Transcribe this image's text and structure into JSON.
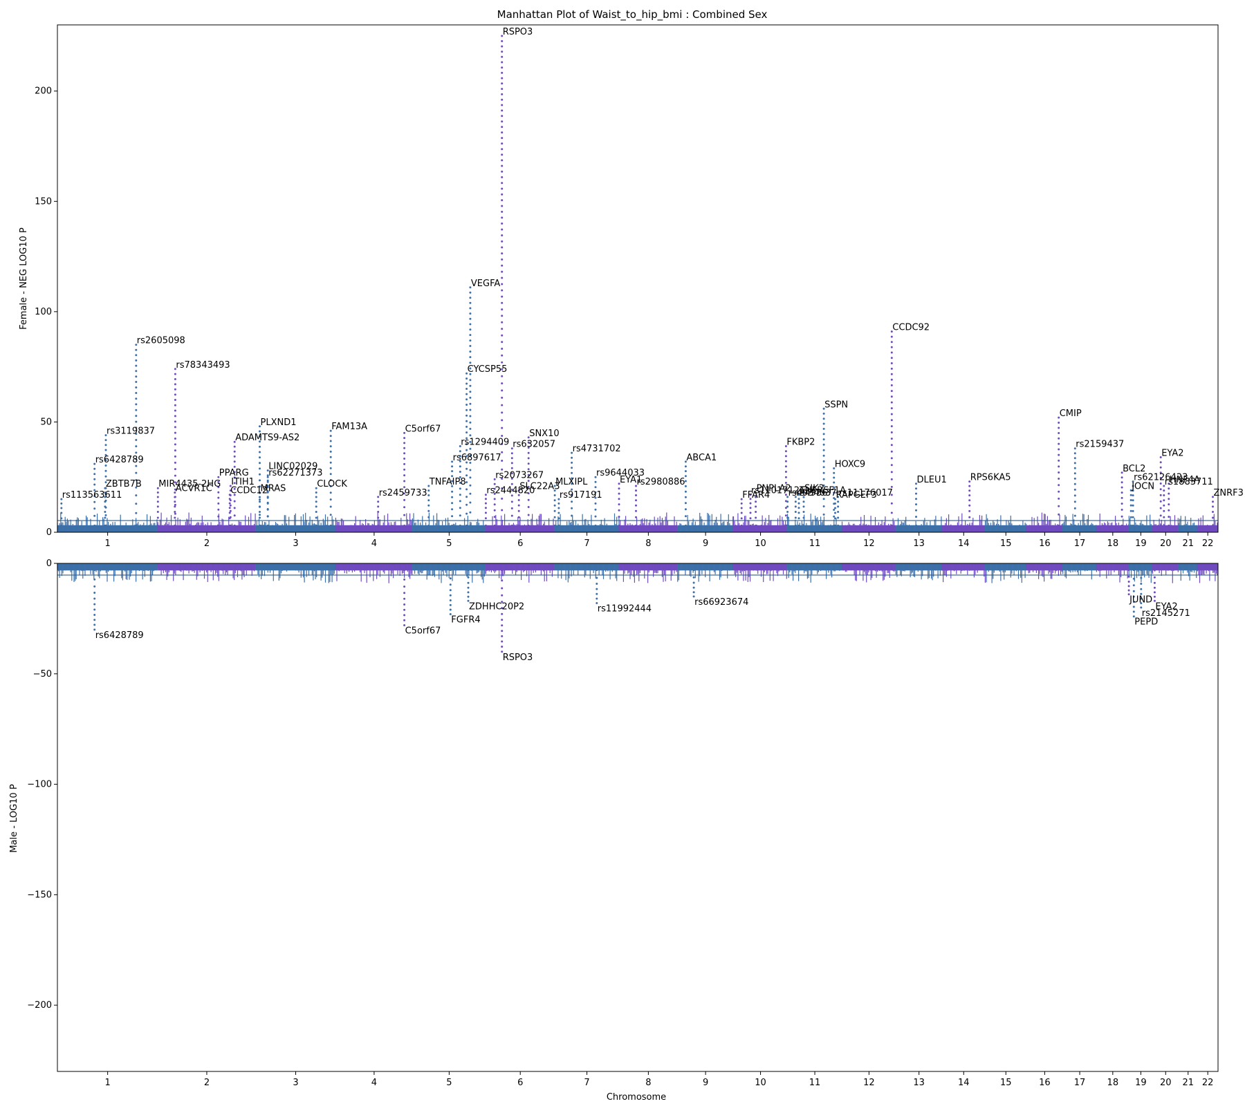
{
  "chart_data": {
    "type": "scatter",
    "title": "Manhattan Plot of Waist_to_hip_bmi : Combined Sex",
    "xlabel": "Chromosome",
    "colors": {
      "odd": "#3d6fa8",
      "even": "#6f4bbf",
      "threshold": "#2e5e8c"
    },
    "chromosomes": [
      "1",
      "2",
      "3",
      "4",
      "5",
      "6",
      "7",
      "8",
      "9",
      "10",
      "11",
      "12",
      "13",
      "14",
      "15",
      "16",
      "17",
      "18",
      "19",
      "20",
      "21",
      "22"
    ],
    "chrom_lengths": [
      248.9,
      242.2,
      198.3,
      190.2,
      181.5,
      170.8,
      159.3,
      145.1,
      138.4,
      133.8,
      135.1,
      133.3,
      114.4,
      107.0,
      102.0,
      90.3,
      83.3,
      80.4,
      58.6,
      64.4,
      46.7,
      50.8
    ],
    "top": {
      "ylabel": "Female - NEG LOG10 P",
      "ylim": [
        0,
        230
      ],
      "yticks": [
        0,
        50,
        100,
        150,
        200
      ],
      "threshold": 5.3,
      "peaks": [
        {
          "chr": 1,
          "pos": 10,
          "y": 15,
          "label": "rs113563611"
        },
        {
          "chr": 1,
          "pos": 92,
          "y": 31,
          "label": "rs6428789"
        },
        {
          "chr": 1,
          "pos": 120,
          "y": 44,
          "label": "rs3119837"
        },
        {
          "chr": 1,
          "pos": 118,
          "y": 20,
          "label": "ZBTB7B"
        },
        {
          "chr": 1,
          "pos": 195,
          "y": 85,
          "label": "rs2605098"
        },
        {
          "chr": 2,
          "pos": 0,
          "y": 20,
          "label": "MIR4435-2HG"
        },
        {
          "chr": 2,
          "pos": 42,
          "y": 18,
          "label": "ACVR1C"
        },
        {
          "chr": 2,
          "pos": 43,
          "y": 74,
          "label": "rs78343493"
        },
        {
          "chr": 2,
          "pos": 150,
          "y": 25,
          "label": "PPARG"
        },
        {
          "chr": 2,
          "pos": 180,
          "y": 21,
          "label": "ITIH1"
        },
        {
          "chr": 2,
          "pos": 178,
          "y": 17,
          "label": "CCDC12"
        },
        {
          "chr": 2,
          "pos": 190,
          "y": 41,
          "label": "ADAMTS9-AS2"
        },
        {
          "chr": 3,
          "pos": 10,
          "y": 48,
          "label": "PLXND1"
        },
        {
          "chr": 3,
          "pos": 10,
          "y": 18,
          "label": "MRAS"
        },
        {
          "chr": 3,
          "pos": 30,
          "y": 28,
          "label": "LINC02029"
        },
        {
          "chr": 3,
          "pos": 30,
          "y": 25,
          "label": "rs62271373"
        },
        {
          "chr": 3,
          "pos": 150,
          "y": 20,
          "label": "CLOCK"
        },
        {
          "chr": 3,
          "pos": 186,
          "y": 46,
          "label": "FAM13A"
        },
        {
          "chr": 4,
          "pos": 105,
          "y": 16,
          "label": "rs2459733"
        },
        {
          "chr": 4,
          "pos": 170,
          "y": 45,
          "label": "C5orf67"
        },
        {
          "chr": 5,
          "pos": 40,
          "y": 21,
          "label": "TNFAIP8"
        },
        {
          "chr": 5,
          "pos": 98,
          "y": 32,
          "label": "rs6897617"
        },
        {
          "chr": 5,
          "pos": 118,
          "y": 39,
          "label": "rs1294409"
        },
        {
          "chr": 5,
          "pos": 143,
          "y": 111,
          "label": "VEGFA"
        },
        {
          "chr": 5,
          "pos": 134,
          "y": 72,
          "label": "CYCSP55"
        },
        {
          "chr": 6,
          "pos": 0,
          "y": 17,
          "label": "rs2444820"
        },
        {
          "chr": 6,
          "pos": 22,
          "y": 24,
          "label": "rs2073267"
        },
        {
          "chr": 6,
          "pos": 40,
          "y": 225,
          "label": "RSPO3"
        },
        {
          "chr": 6,
          "pos": 65,
          "y": 38,
          "label": "rs632057"
        },
        {
          "chr": 6,
          "pos": 82,
          "y": 19,
          "label": "SLC22A3"
        },
        {
          "chr": 6,
          "pos": 106,
          "y": 43,
          "label": "SNX10"
        },
        {
          "chr": 7,
          "pos": 0,
          "y": 21,
          "label": "MLXIPL"
        },
        {
          "chr": 7,
          "pos": 10,
          "y": 15,
          "label": "rs917191"
        },
        {
          "chr": 7,
          "pos": 42,
          "y": 36,
          "label": "rs4731702"
        },
        {
          "chr": 7,
          "pos": 101,
          "y": 25,
          "label": "rs9644033"
        },
        {
          "chr": 8,
          "pos": 0,
          "y": 22,
          "label": "EYA1"
        },
        {
          "chr": 8,
          "pos": 42,
          "y": 21,
          "label": "rs2980886"
        },
        {
          "chr": 9,
          "pos": 20,
          "y": 32,
          "label": "ABCA1"
        },
        {
          "chr": 10,
          "pos": 20,
          "y": 15,
          "label": "FFAR4"
        },
        {
          "chr": 10,
          "pos": 42,
          "y": 17,
          "label": "rs11017126"
        },
        {
          "chr": 10,
          "pos": 55,
          "y": 18,
          "label": "PNPLA2"
        },
        {
          "chr": 10,
          "pos": 130,
          "y": 39,
          "label": "FKBP2"
        },
        {
          "chr": 11,
          "pos": 0,
          "y": 16,
          "label": "rs4934037"
        },
        {
          "chr": 11,
          "pos": 40,
          "y": 18,
          "label": "SIK2"
        },
        {
          "chr": 11,
          "pos": 28,
          "y": 17,
          "label": "TNFRSF1A"
        },
        {
          "chr": 11,
          "pos": 20,
          "y": 16,
          "label": "rs4936"
        },
        {
          "chr": 11,
          "pos": 90,
          "y": 56,
          "label": "SSPN"
        },
        {
          "chr": 11,
          "pos": 115,
          "y": 29,
          "label": "HOXC9"
        },
        {
          "chr": 11,
          "pos": 118,
          "y": 15,
          "label": "RAPGEF3"
        },
        {
          "chr": 11,
          "pos": 125,
          "y": 16,
          "label": "rs11176017"
        },
        {
          "chr": 12,
          "pos": 123,
          "y": 91,
          "label": "CCDC92"
        },
        {
          "chr": 13,
          "pos": 50,
          "y": 22,
          "label": "DLEU1"
        },
        {
          "chr": 14,
          "pos": 68,
          "y": 23,
          "label": "RPS6KA5"
        },
        {
          "chr": 16,
          "pos": 80,
          "y": 52,
          "label": "CMIP"
        },
        {
          "chr": 17,
          "pos": 30,
          "y": 38,
          "label": "rs2159437"
        },
        {
          "chr": 18,
          "pos": 63,
          "y": 27,
          "label": "BCL2"
        },
        {
          "chr": 19,
          "pos": 5,
          "y": 19,
          "label": "JOCN"
        },
        {
          "chr": 19,
          "pos": 10,
          "y": 23,
          "label": "rs62126423"
        },
        {
          "chr": 20,
          "pos": 20,
          "y": 34,
          "label": "EYA2"
        },
        {
          "chr": 20,
          "pos": 28,
          "y": 21,
          "label": "rs1883711"
        },
        {
          "chr": 20,
          "pos": 40,
          "y": 22,
          "label": "HNF4A"
        },
        {
          "chr": 22,
          "pos": 38,
          "y": 16,
          "label": "ZNRF3"
        }
      ]
    },
    "bottom": {
      "ylabel": "Male - LOG10 P",
      "ylim": [
        -230,
        0
      ],
      "yticks": [
        0,
        -50,
        -100,
        -150,
        -200
      ],
      "threshold": -5.3,
      "peaks": [
        {
          "chr": 1,
          "pos": 92,
          "y": -30,
          "label": "rs6428789"
        },
        {
          "chr": 4,
          "pos": 170,
          "y": -28,
          "label": "C5orf67"
        },
        {
          "chr": 5,
          "pos": 94,
          "y": -23,
          "label": "FGFR4"
        },
        {
          "chr": 5,
          "pos": 138,
          "y": -17,
          "label": "ZDHHC20P2"
        },
        {
          "chr": 6,
          "pos": 40,
          "y": -40,
          "label": "RSPO3"
        },
        {
          "chr": 7,
          "pos": 104,
          "y": -18,
          "label": "rs11992444"
        },
        {
          "chr": 9,
          "pos": 40,
          "y": -15,
          "label": "rs66923674"
        },
        {
          "chr": 18,
          "pos": 80,
          "y": -14,
          "label": "JUND"
        },
        {
          "chr": 19,
          "pos": 12,
          "y": -24,
          "label": "PEPD"
        },
        {
          "chr": 19,
          "pos": 30,
          "y": -20,
          "label": "rs2145271"
        },
        {
          "chr": 20,
          "pos": 5,
          "y": -17,
          "label": "EYA2"
        }
      ]
    }
  }
}
